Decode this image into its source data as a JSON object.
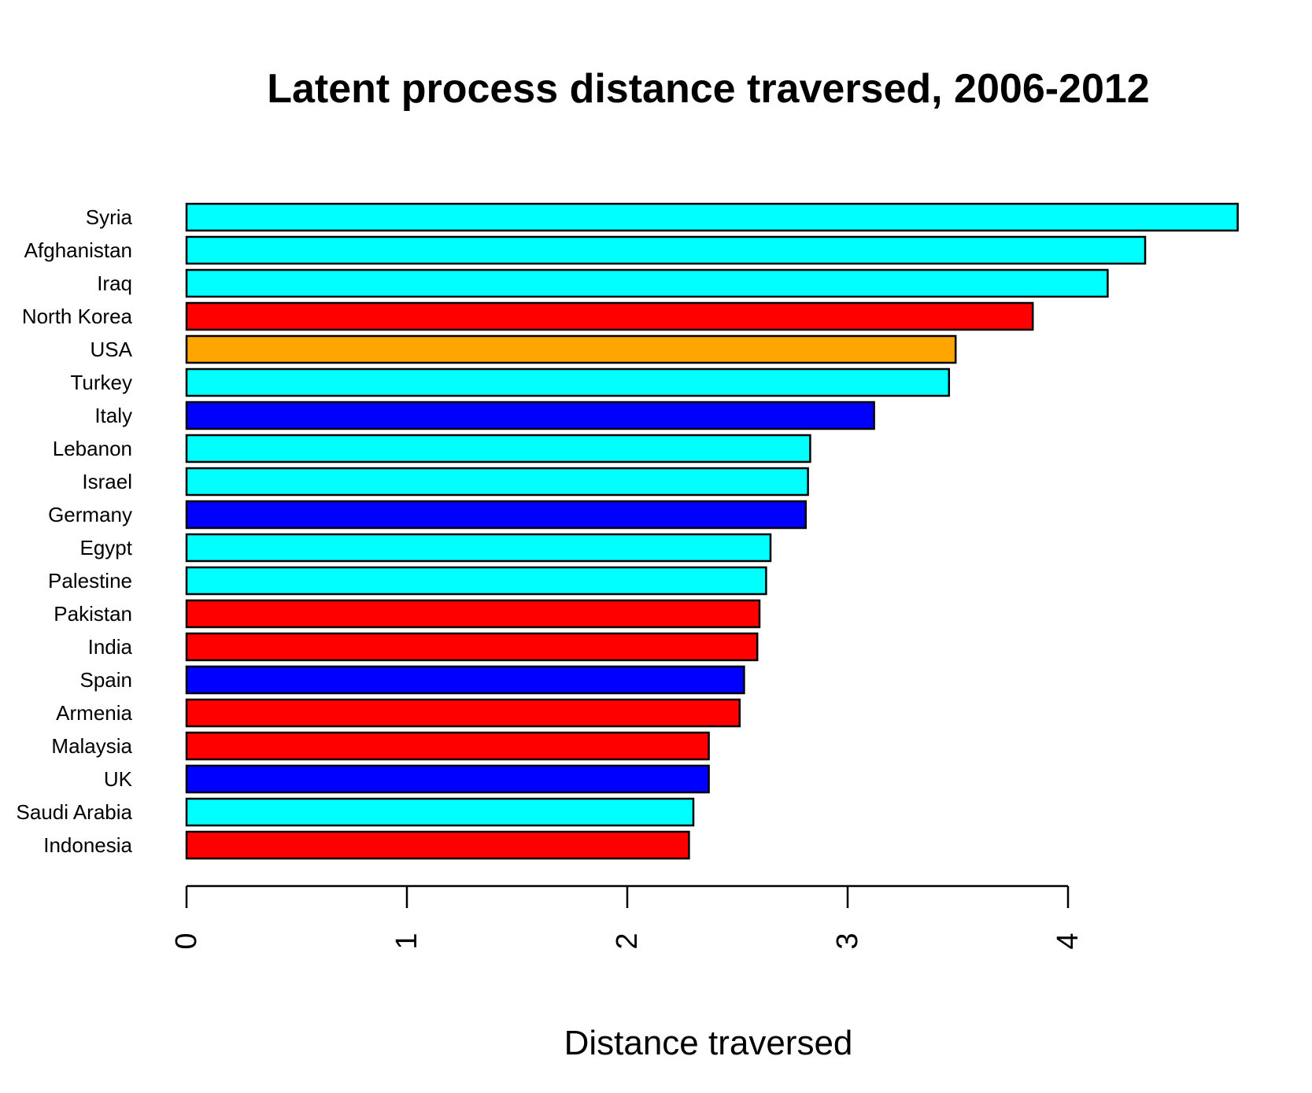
{
  "chart_data": {
    "type": "bar",
    "orientation": "horizontal",
    "title": "Latent process distance traversed, 2006-2012",
    "xlabel": "Distance traversed",
    "ylabel": "",
    "xlim": [
      0,
      4.8
    ],
    "xticks": [
      0,
      1,
      2,
      3,
      4
    ],
    "grid": false,
    "legend": "none",
    "categories": [
      "Syria",
      "Afghanistan",
      "Iraq",
      "North Korea",
      "USA",
      "Turkey",
      "Italy",
      "Lebanon",
      "Israel",
      "Germany",
      "Egypt",
      "Palestine",
      "Pakistan",
      "India",
      "Spain",
      "Armenia",
      "Malaysia",
      "UK",
      "Saudi Arabia",
      "Indonesia"
    ],
    "values": [
      4.77,
      4.35,
      4.18,
      3.84,
      3.49,
      3.46,
      3.12,
      2.83,
      2.82,
      2.81,
      2.65,
      2.63,
      2.6,
      2.59,
      2.53,
      2.51,
      2.37,
      2.37,
      2.3,
      2.28
    ],
    "colors": [
      "#00ffff",
      "#00ffff",
      "#00ffff",
      "#ff0000",
      "#ffa500",
      "#00ffff",
      "#0000ff",
      "#00ffff",
      "#00ffff",
      "#0000ff",
      "#00ffff",
      "#00ffff",
      "#ff0000",
      "#ff0000",
      "#0000ff",
      "#ff0000",
      "#ff0000",
      "#0000ff",
      "#00ffff",
      "#ff0000"
    ]
  }
}
